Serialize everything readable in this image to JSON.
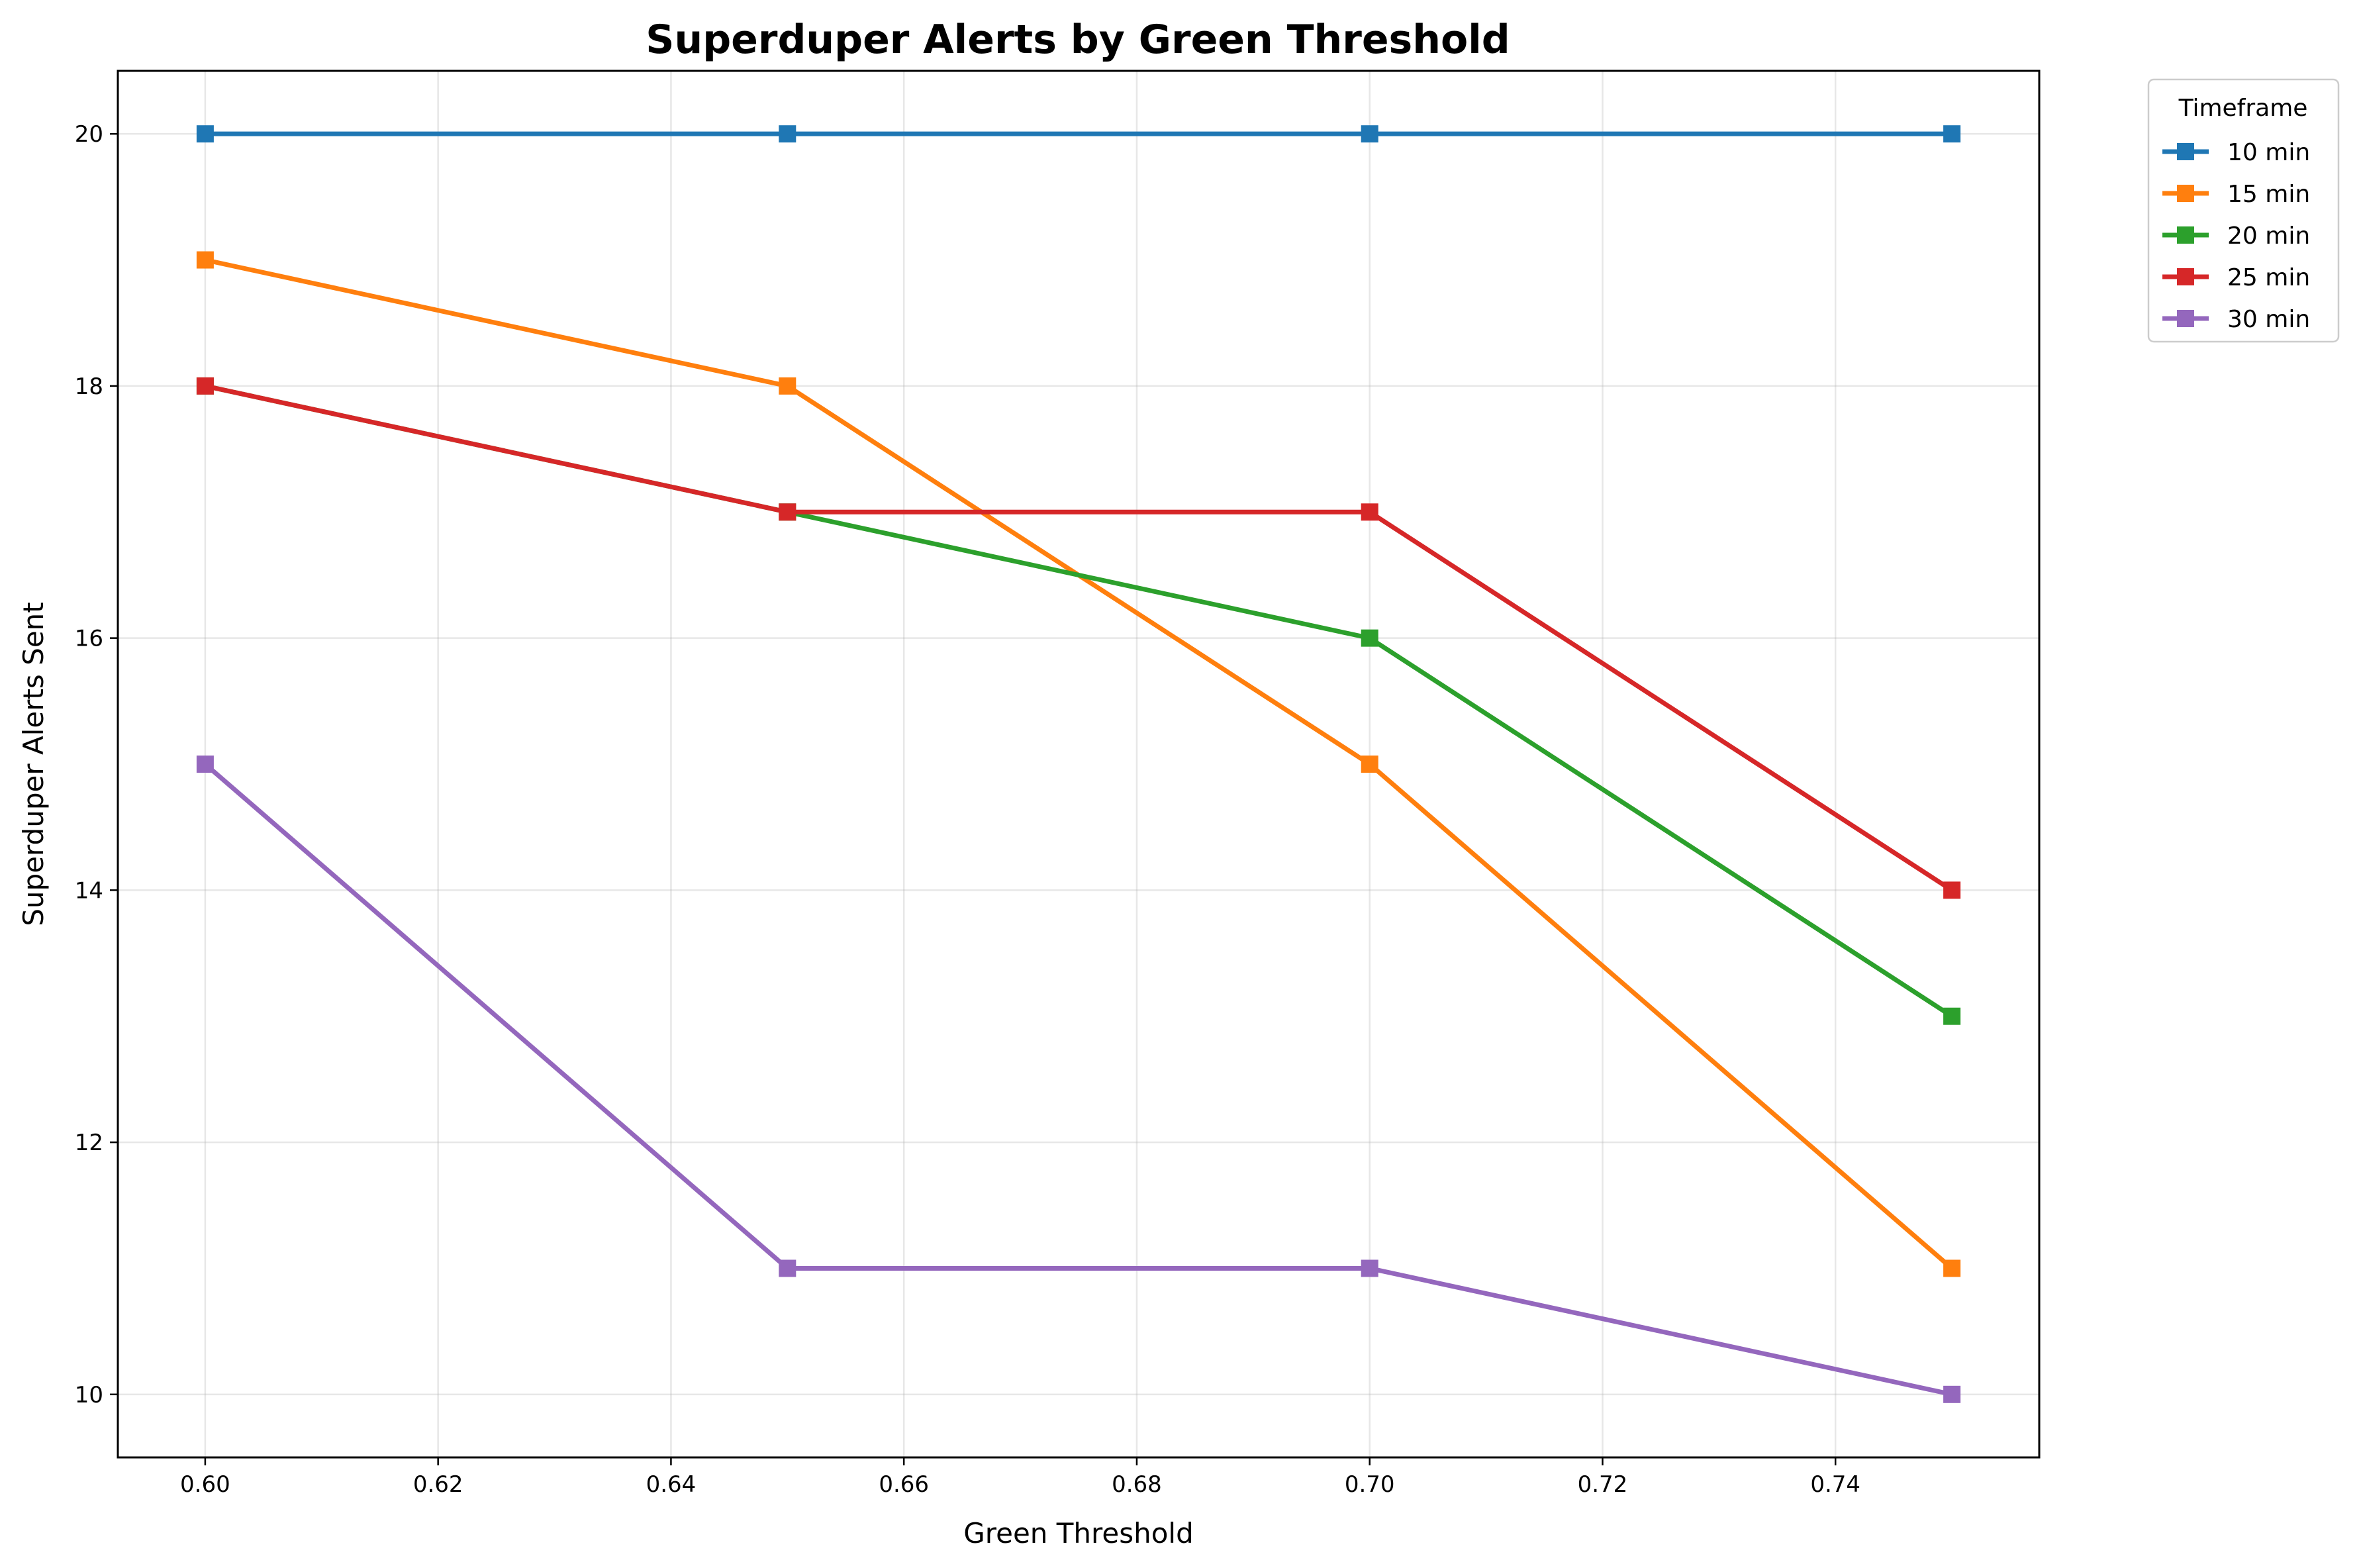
{
  "chart_data": {
    "type": "line",
    "title": "Superduper Alerts by Green Threshold",
    "xlabel": "Green Threshold",
    "ylabel": "Superduper Alerts Sent",
    "xlim": [
      0.5925,
      0.7575
    ],
    "ylim": [
      9.5,
      20.5
    ],
    "x_ticks": [
      "0.60",
      "0.62",
      "0.64",
      "0.66",
      "0.68",
      "0.70",
      "0.72",
      "0.74"
    ],
    "x_tick_values": [
      0.6,
      0.62,
      0.64,
      0.66,
      0.68,
      0.7,
      0.72,
      0.74
    ],
    "y_ticks": [
      "10",
      "12",
      "14",
      "16",
      "18",
      "20"
    ],
    "y_tick_values": [
      10,
      12,
      14,
      16,
      18,
      20
    ],
    "grid": true,
    "legend_title": "Timeframe",
    "legend_position": "outside-top-right",
    "x": [
      0.6,
      0.65,
      0.7,
      0.75
    ],
    "series": [
      {
        "name": "10 min",
        "color": "#1f77b4",
        "values": [
          20,
          20,
          20,
          20
        ]
      },
      {
        "name": "15 min",
        "color": "#ff7f0e",
        "values": [
          19,
          18,
          15,
          11
        ]
      },
      {
        "name": "20 min",
        "color": "#2ca02c",
        "values": [
          18,
          17,
          16,
          13
        ]
      },
      {
        "name": "25 min",
        "color": "#d62728",
        "values": [
          18,
          17,
          17,
          14
        ]
      },
      {
        "name": "30 min",
        "color": "#9467bd",
        "values": [
          15,
          11,
          11,
          10
        ]
      }
    ]
  }
}
